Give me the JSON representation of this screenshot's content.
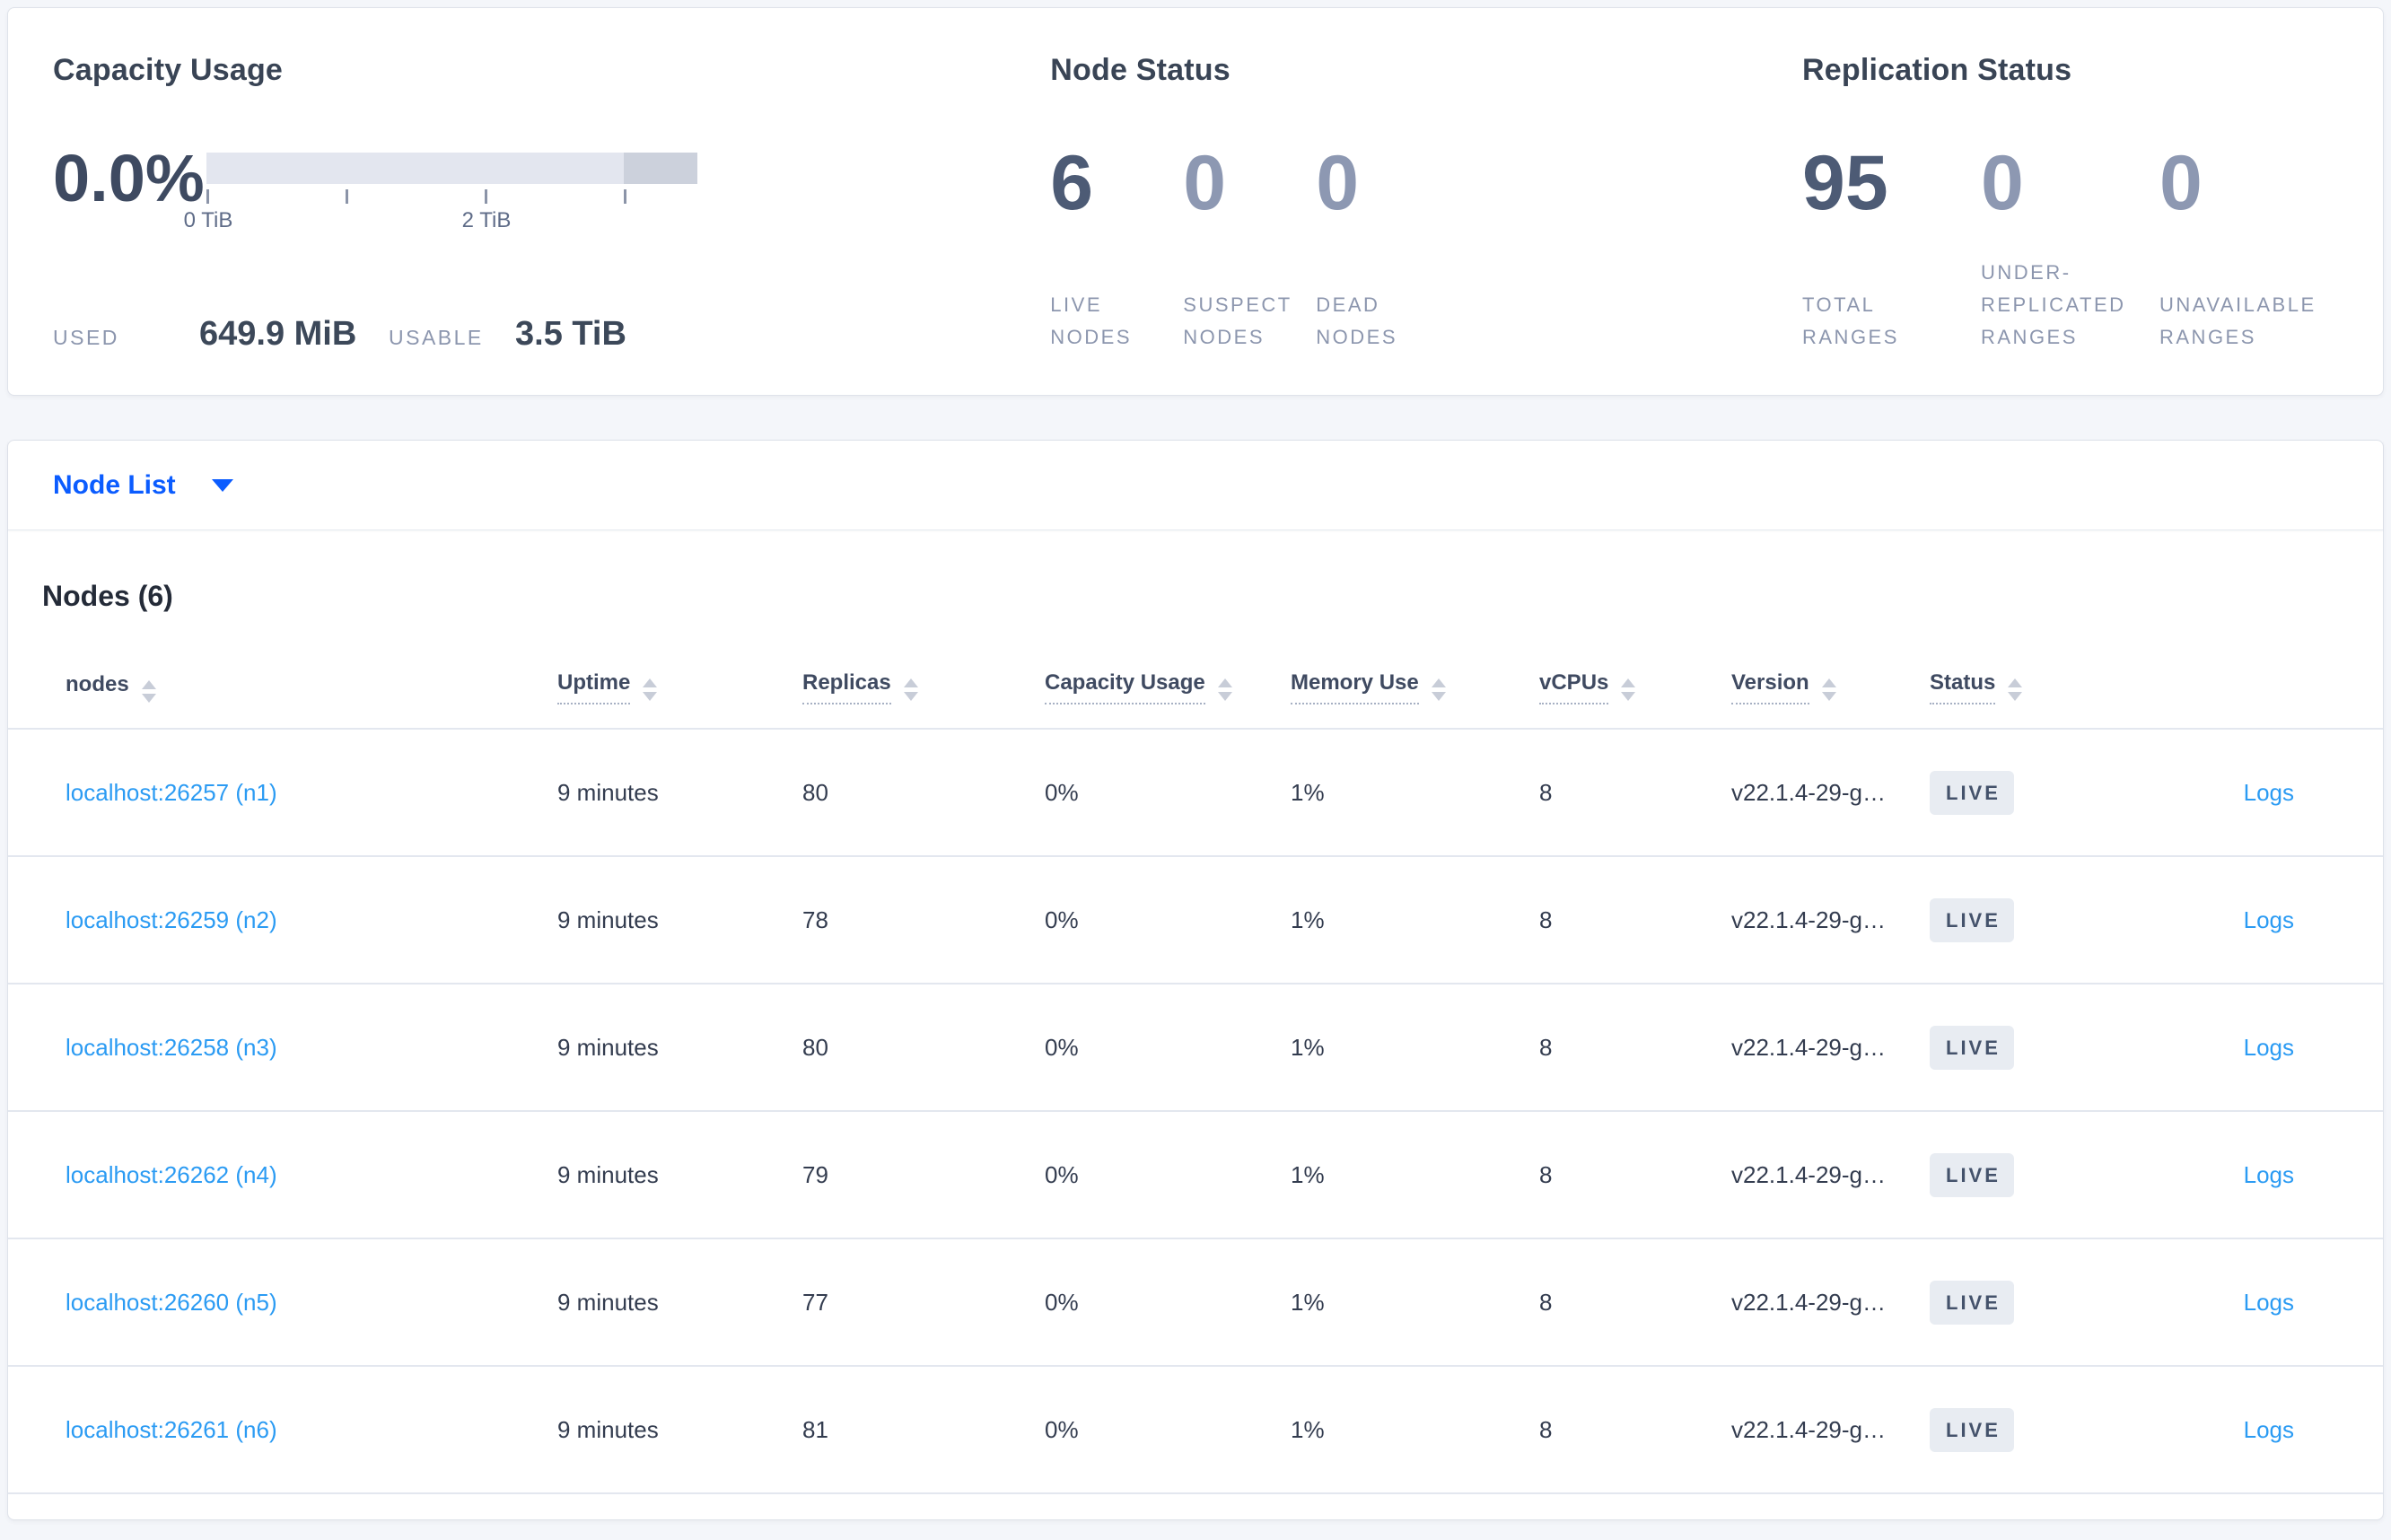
{
  "colors": {
    "page_bg": "#f4f6fa",
    "primary_blue": "#0b5cff",
    "link_blue": "#2b9bf3",
    "stat_strong": "#4d5b75",
    "stat_dim": "#8d98b2",
    "badge_bg": "#e8ecf2",
    "gauge_track": "#e3e6ef",
    "gauge_extra": "#ccd1dc"
  },
  "summary": {
    "capacity": {
      "title": "Capacity Usage",
      "percent": "0.0%",
      "tick_labels": [
        "0 TiB",
        "2 TiB"
      ],
      "used_label": "USED",
      "used_value": "649.9 MiB",
      "usable_label": "USABLE",
      "usable_value": "3.5 TiB"
    },
    "node_status": {
      "title": "Node Status",
      "stats": [
        {
          "value": "6",
          "label": "LIVE NODES"
        },
        {
          "value": "0",
          "label": "SUSPECT NODES"
        },
        {
          "value": "0",
          "label": "DEAD NODES"
        }
      ]
    },
    "replication": {
      "title": "Replication Status",
      "stats": [
        {
          "value": "95",
          "label": "TOTAL RANGES"
        },
        {
          "value": "0",
          "label": "UNDER-REPLICATED RANGES"
        },
        {
          "value": "0",
          "label": "UNAVAILABLE RANGES"
        }
      ]
    }
  },
  "view_selector": {
    "label": "Node List"
  },
  "table": {
    "title": "Nodes (6)",
    "columns": [
      "nodes",
      "Uptime",
      "Replicas",
      "Capacity Usage",
      "Memory Use",
      "vCPUs",
      "Version",
      "Status"
    ],
    "rows": [
      {
        "node": "localhost:26257 (n1)",
        "uptime": "9 minutes",
        "replicas": "80",
        "capacity": "0%",
        "memory": "1%",
        "vcpus": "8",
        "version": "v22.1.4-29-g…",
        "status": "LIVE",
        "logs": "Logs"
      },
      {
        "node": "localhost:26259 (n2)",
        "uptime": "9 minutes",
        "replicas": "78",
        "capacity": "0%",
        "memory": "1%",
        "vcpus": "8",
        "version": "v22.1.4-29-g…",
        "status": "LIVE",
        "logs": "Logs"
      },
      {
        "node": "localhost:26258 (n3)",
        "uptime": "9 minutes",
        "replicas": "80",
        "capacity": "0%",
        "memory": "1%",
        "vcpus": "8",
        "version": "v22.1.4-29-g…",
        "status": "LIVE",
        "logs": "Logs"
      },
      {
        "node": "localhost:26262 (n4)",
        "uptime": "9 minutes",
        "replicas": "79",
        "capacity": "0%",
        "memory": "1%",
        "vcpus": "8",
        "version": "v22.1.4-29-g…",
        "status": "LIVE",
        "logs": "Logs"
      },
      {
        "node": "localhost:26260 (n5)",
        "uptime": "9 minutes",
        "replicas": "77",
        "capacity": "0%",
        "memory": "1%",
        "vcpus": "8",
        "version": "v22.1.4-29-g…",
        "status": "LIVE",
        "logs": "Logs"
      },
      {
        "node": "localhost:26261 (n6)",
        "uptime": "9 minutes",
        "replicas": "81",
        "capacity": "0%",
        "memory": "1%",
        "vcpus": "8",
        "version": "v22.1.4-29-g…",
        "status": "LIVE",
        "logs": "Logs"
      }
    ]
  }
}
